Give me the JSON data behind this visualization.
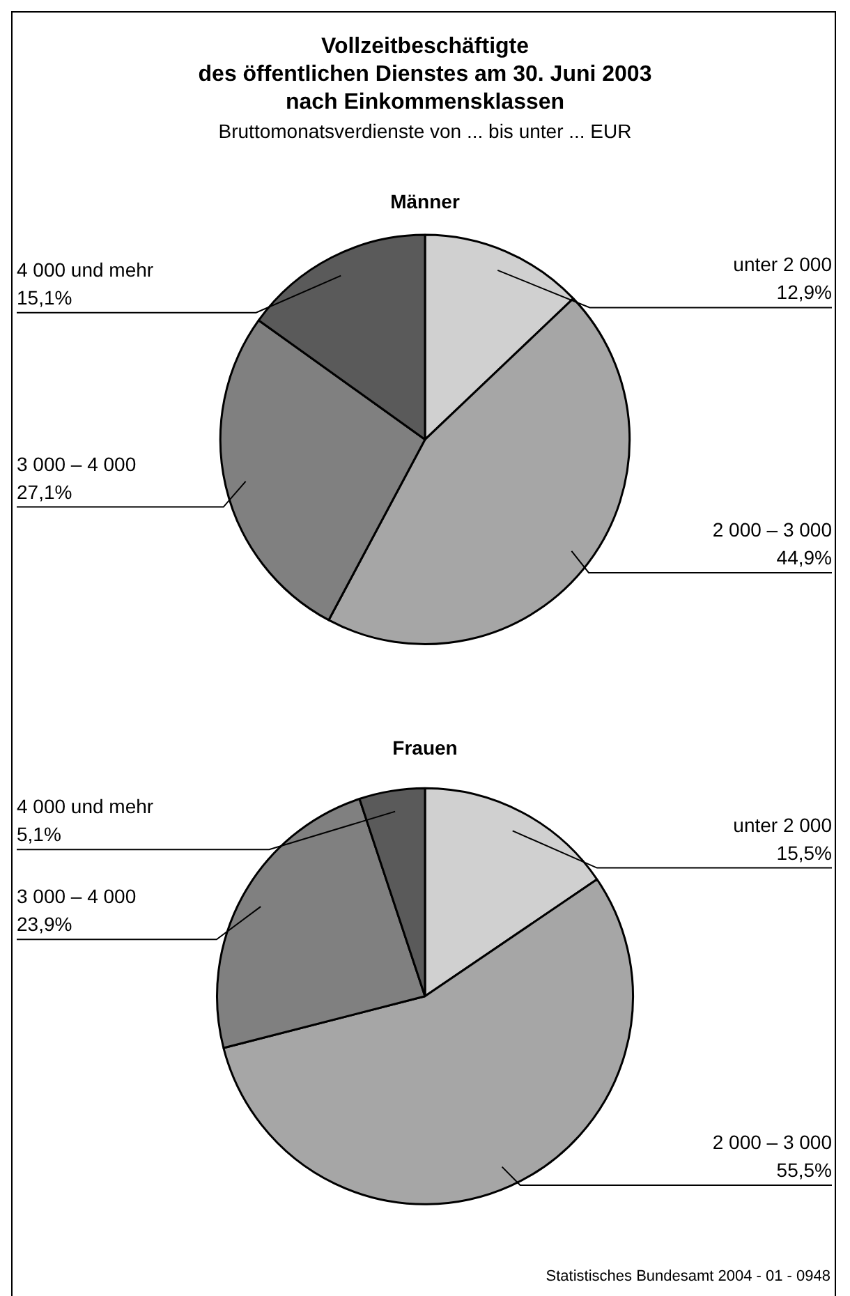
{
  "chart_data": [
    {
      "type": "other",
      "title": "Vollzeitbeschäftigte\ndes öffentlichen Dienstes am 30. Juni 2003\nnach Einkommensklassen",
      "subtitle": "Bruttomonatsverdienste von ... bis unter ... EUR",
      "annotations": [
        "Statistisches Bundesamt 2004 - 01 - 0948"
      ]
    },
    {
      "type": "pie",
      "title": "Männer",
      "categories": [
        "unter 2 000",
        "2 000 – 3 000",
        "3 000 – 4 000",
        "4 000 und mehr"
      ],
      "values": [
        12.9,
        44.9,
        27.1,
        15.1
      ],
      "value_labels": [
        "12,9%",
        "44,9%",
        "27,1%",
        "15,1%"
      ],
      "colors": [
        "#d0d0d0",
        "#a6a6a6",
        "#808080",
        "#5a5a5a"
      ],
      "legend": false
    },
    {
      "type": "pie",
      "title": "Frauen",
      "categories": [
        "unter 2 000",
        "2 000 – 3 000",
        "3 000 – 4 000",
        "4 000 und mehr"
      ],
      "values": [
        15.5,
        55.5,
        23.9,
        5.1
      ],
      "value_labels": [
        "15,5%",
        "55,5%",
        "23,9%",
        "5,1%"
      ],
      "colors": [
        "#d0d0d0",
        "#a6a6a6",
        "#808080",
        "#5a5a5a"
      ],
      "legend": false
    }
  ]
}
